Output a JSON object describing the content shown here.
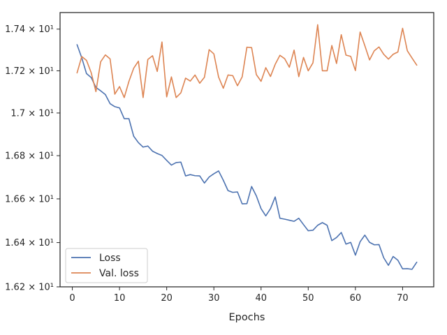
{
  "chart_data": {
    "type": "line",
    "xlabel": "Epochs",
    "ylabel": "",
    "xlim": [
      -2.6,
      76.6
    ],
    "ylim": [
      16.2,
      17.48
    ],
    "xticks": [
      0,
      10,
      20,
      30,
      40,
      50,
      60,
      70
    ],
    "xtick_labels": [
      "0",
      "10",
      "20",
      "30",
      "40",
      "50",
      "60",
      "70"
    ],
    "yticks": [
      16.2,
      16.4,
      16.6,
      16.8,
      17.0,
      17.2,
      17.4
    ],
    "ytick_labels": [
      "1.62 × 10¹",
      "1.64 × 10¹",
      "1.66 × 10¹",
      "1.68 × 10¹",
      "1.7 × 10¹",
      "1.72 × 10¹",
      "1.74 × 10¹"
    ],
    "y_scale": "log",
    "grid": false,
    "legend_position": "lower-left",
    "x": [
      1,
      2,
      3,
      4,
      5,
      6,
      7,
      8,
      9,
      10,
      11,
      12,
      13,
      14,
      15,
      16,
      17,
      18,
      19,
      20,
      21,
      22,
      23,
      24,
      25,
      26,
      27,
      28,
      29,
      30,
      31,
      32,
      33,
      34,
      35,
      36,
      37,
      38,
      39,
      40,
      41,
      42,
      43,
      44,
      45,
      46,
      47,
      48,
      49,
      50,
      51,
      52,
      53,
      54,
      55,
      56,
      57,
      58,
      59,
      60,
      61,
      62,
      63,
      64,
      65,
      66,
      67,
      68,
      69,
      70,
      71,
      72,
      73
    ],
    "series": [
      {
        "name": "Loss",
        "color": "#4c72b0",
        "values": [
          17.325,
          17.262,
          17.187,
          17.168,
          17.121,
          17.105,
          17.087,
          17.044,
          17.03,
          17.024,
          16.973,
          16.973,
          16.891,
          16.861,
          16.84,
          16.845,
          16.821,
          16.81,
          16.801,
          16.778,
          16.756,
          16.768,
          16.77,
          16.706,
          16.712,
          16.707,
          16.706,
          16.673,
          16.701,
          16.716,
          16.729,
          16.686,
          16.638,
          16.63,
          16.632,
          16.577,
          16.578,
          16.657,
          16.614,
          16.555,
          16.522,
          16.555,
          16.609,
          16.511,
          16.507,
          16.502,
          16.497,
          16.511,
          16.482,
          16.454,
          16.456,
          16.479,
          16.491,
          16.479,
          16.409,
          16.423,
          16.446,
          16.393,
          16.401,
          16.343,
          16.404,
          16.434,
          16.401,
          16.39,
          16.391,
          16.331,
          16.297,
          16.337,
          16.32,
          16.281,
          16.282,
          16.279,
          16.311
        ]
      },
      {
        "name": "Val. loss",
        "color": "#dd8452",
        "values": [
          17.19,
          17.268,
          17.25,
          17.191,
          17.101,
          17.243,
          17.276,
          17.257,
          17.089,
          17.125,
          17.073,
          17.15,
          17.212,
          17.246,
          17.073,
          17.254,
          17.272,
          17.197,
          17.338,
          17.076,
          17.171,
          17.073,
          17.095,
          17.165,
          17.151,
          17.18,
          17.141,
          17.169,
          17.301,
          17.281,
          17.17,
          17.117,
          17.18,
          17.177,
          17.129,
          17.171,
          17.313,
          17.311,
          17.182,
          17.15,
          17.215,
          17.173,
          17.231,
          17.274,
          17.258,
          17.217,
          17.299,
          17.172,
          17.264,
          17.2,
          17.238,
          17.421,
          17.2,
          17.2,
          17.321,
          17.235,
          17.373,
          17.275,
          17.269,
          17.201,
          17.386,
          17.32,
          17.252,
          17.296,
          17.314,
          17.279,
          17.256,
          17.279,
          17.29,
          17.404,
          17.296,
          17.261,
          17.227
        ]
      }
    ]
  }
}
